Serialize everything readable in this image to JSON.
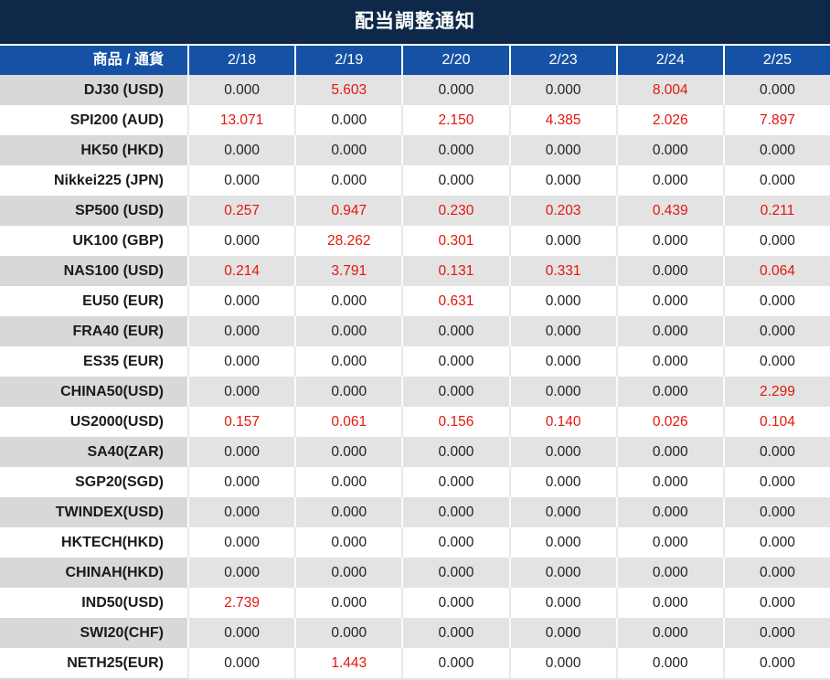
{
  "title": "配当調整通知",
  "colors": {
    "title_bar_bg": "#0e2849",
    "header_bg": "#1552a5",
    "header_text": "#ffffff",
    "gray_row_label_bg": "#d8d8d8",
    "gray_row_value_bg": "#e3e3e3",
    "white_row_bg": "#ffffff",
    "value_text": "#232323",
    "nonzero_value_text": "#e3170d"
  },
  "table": {
    "label_header": "商品 / 通貨",
    "date_headers": [
      "2/18",
      "2/19",
      "2/20",
      "2/23",
      "2/24",
      "2/25"
    ],
    "rows": [
      {
        "label": "DJ30 (USD)",
        "values": [
          "0.000",
          "5.603",
          "0.000",
          "0.000",
          "8.004",
          "0.000"
        ],
        "red": [
          0,
          1,
          0,
          0,
          1,
          0
        ]
      },
      {
        "label": "SPI200 (AUD)",
        "values": [
          "13.071",
          "0.000",
          "2.150",
          "4.385",
          "2.026",
          "7.897"
        ],
        "red": [
          1,
          0,
          1,
          1,
          1,
          1
        ]
      },
      {
        "label": "HK50 (HKD)",
        "values": [
          "0.000",
          "0.000",
          "0.000",
          "0.000",
          "0.000",
          "0.000"
        ],
        "red": [
          0,
          0,
          0,
          0,
          0,
          0
        ]
      },
      {
        "label": "Nikkei225 (JPN)",
        "values": [
          "0.000",
          "0.000",
          "0.000",
          "0.000",
          "0.000",
          "0.000"
        ],
        "red": [
          0,
          0,
          0,
          0,
          0,
          0
        ]
      },
      {
        "label": "SP500 (USD)",
        "values": [
          "0.257",
          "0.947",
          "0.230",
          "0.203",
          "0.439",
          "0.211"
        ],
        "red": [
          1,
          1,
          1,
          1,
          1,
          1
        ]
      },
      {
        "label": "UK100 (GBP)",
        "values": [
          "0.000",
          "28.262",
          "0.301",
          "0.000",
          "0.000",
          "0.000"
        ],
        "red": [
          0,
          1,
          1,
          0,
          0,
          0
        ]
      },
      {
        "label": "NAS100 (USD)",
        "values": [
          "0.214",
          "3.791",
          "0.131",
          "0.331",
          "0.000",
          "0.064"
        ],
        "red": [
          1,
          1,
          1,
          1,
          0,
          1
        ]
      },
      {
        "label": "EU50 (EUR)",
        "values": [
          "0.000",
          "0.000",
          "0.631",
          "0.000",
          "0.000",
          "0.000"
        ],
        "red": [
          0,
          0,
          1,
          0,
          0,
          0
        ]
      },
      {
        "label": "FRA40 (EUR)",
        "values": [
          "0.000",
          "0.000",
          "0.000",
          "0.000",
          "0.000",
          "0.000"
        ],
        "red": [
          0,
          0,
          0,
          0,
          0,
          0
        ]
      },
      {
        "label": "ES35 (EUR)",
        "values": [
          "0.000",
          "0.000",
          "0.000",
          "0.000",
          "0.000",
          "0.000"
        ],
        "red": [
          0,
          0,
          0,
          0,
          0,
          0
        ]
      },
      {
        "label": "CHINA50(USD)",
        "values": [
          "0.000",
          "0.000",
          "0.000",
          "0.000",
          "0.000",
          "2.299"
        ],
        "red": [
          0,
          0,
          0,
          0,
          0,
          1
        ]
      },
      {
        "label": "US2000(USD)",
        "values": [
          "0.157",
          "0.061",
          "0.156",
          "0.140",
          "0.026",
          "0.104"
        ],
        "red": [
          1,
          1,
          1,
          1,
          1,
          1
        ]
      },
      {
        "label": "SA40(ZAR)",
        "values": [
          "0.000",
          "0.000",
          "0.000",
          "0.000",
          "0.000",
          "0.000"
        ],
        "red": [
          0,
          0,
          0,
          0,
          0,
          0
        ]
      },
      {
        "label": "SGP20(SGD)",
        "values": [
          "0.000",
          "0.000",
          "0.000",
          "0.000",
          "0.000",
          "0.000"
        ],
        "red": [
          0,
          0,
          0,
          0,
          0,
          0
        ]
      },
      {
        "label": "TWINDEX(USD)",
        "values": [
          "0.000",
          "0.000",
          "0.000",
          "0.000",
          "0.000",
          "0.000"
        ],
        "red": [
          0,
          0,
          0,
          0,
          0,
          0
        ]
      },
      {
        "label": "HKTECH(HKD)",
        "values": [
          "0.000",
          "0.000",
          "0.000",
          "0.000",
          "0.000",
          "0.000"
        ],
        "red": [
          0,
          0,
          0,
          0,
          0,
          0
        ]
      },
      {
        "label": "CHINAH(HKD)",
        "values": [
          "0.000",
          "0.000",
          "0.000",
          "0.000",
          "0.000",
          "0.000"
        ],
        "red": [
          0,
          0,
          0,
          0,
          0,
          0
        ]
      },
      {
        "label": "IND50(USD)",
        "values": [
          "2.739",
          "0.000",
          "0.000",
          "0.000",
          "0.000",
          "0.000"
        ],
        "red": [
          1,
          0,
          0,
          0,
          0,
          0
        ]
      },
      {
        "label": "SWI20(CHF)",
        "values": [
          "0.000",
          "0.000",
          "0.000",
          "0.000",
          "0.000",
          "0.000"
        ],
        "red": [
          0,
          0,
          0,
          0,
          0,
          0
        ]
      },
      {
        "label": "NETH25(EUR)",
        "values": [
          "0.000",
          "1.443",
          "0.000",
          "0.000",
          "0.000",
          "0.000"
        ],
        "red": [
          0,
          1,
          0,
          0,
          0,
          0
        ]
      }
    ]
  }
}
